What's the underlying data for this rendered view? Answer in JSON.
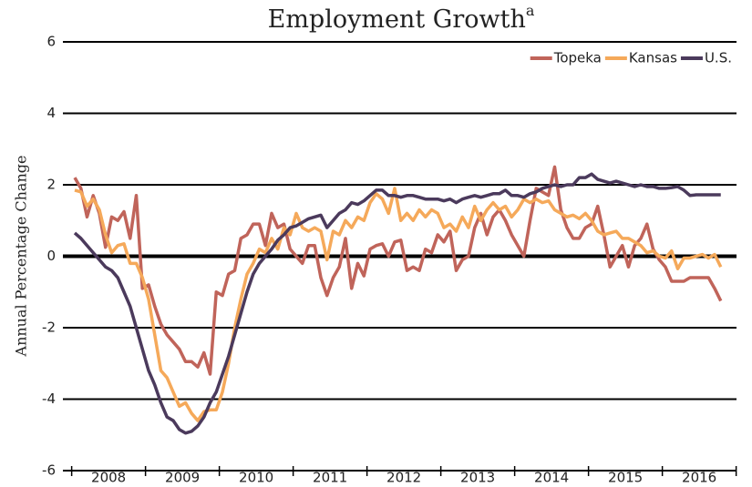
{
  "chart_data": {
    "type": "line",
    "title": "Employment Growth",
    "title_superscript": "a",
    "ylabel": "Annual Percentage Change",
    "categories": [
      null,
      null,
      null,
      null,
      null,
      null,
      "2008",
      null,
      null,
      null,
      null,
      null,
      null,
      null,
      null,
      null,
      null,
      null,
      "2009",
      null,
      null,
      null,
      null,
      null,
      null,
      null,
      null,
      null,
      null,
      null,
      "2010",
      null,
      null,
      null,
      null,
      null,
      null,
      null,
      null,
      null,
      null,
      null,
      "2011",
      null,
      null,
      null,
      null,
      null,
      null,
      null,
      null,
      null,
      null,
      null,
      "2012",
      null,
      null,
      null,
      null,
      null,
      null,
      null,
      null,
      null,
      null,
      null,
      "2013",
      null,
      null,
      null,
      null,
      null,
      null,
      null,
      null,
      null,
      null,
      null,
      "2014",
      null,
      null,
      null,
      null,
      null,
      null,
      null,
      null,
      null,
      null,
      null,
      "2015",
      null,
      null,
      null,
      null,
      null,
      null,
      null,
      null,
      null,
      null,
      null,
      "2016",
      null,
      null,
      null
    ],
    "series": [
      {
        "name": "Topeka",
        "color": "#c0645a",
        "values": [
          2.2,
          1.9,
          1.1,
          1.7,
          1.2,
          0.25,
          1.1,
          1.0,
          1.25,
          0.5,
          1.7,
          -0.9,
          -0.8,
          -1.4,
          -1.9,
          -2.2,
          -2.4,
          -2.6,
          -2.95,
          -2.95,
          -3.1,
          -2.7,
          -3.3,
          -1.0,
          -1.1,
          -0.5,
          -0.4,
          0.5,
          0.6,
          0.9,
          0.9,
          0.3,
          1.2,
          0.8,
          0.9,
          0.2,
          0.0,
          -0.2,
          0.3,
          0.3,
          -0.6,
          -1.1,
          -0.6,
          -0.3,
          0.5,
          -0.9,
          -0.2,
          -0.55,
          0.2,
          0.3,
          0.35,
          0.0,
          0.4,
          0.45,
          -0.4,
          -0.3,
          -0.4,
          0.2,
          0.1,
          0.6,
          0.4,
          0.7,
          -0.4,
          -0.1,
          0.0,
          0.8,
          1.2,
          0.6,
          1.1,
          1.3,
          1.0,
          0.6,
          0.3,
          0.0,
          1.0,
          1.9,
          1.8,
          1.7,
          2.5,
          1.3,
          0.8,
          0.5,
          0.5,
          0.8,
          0.9,
          1.4,
          0.6,
          -0.3,
          0.0,
          0.3,
          -0.3,
          0.3,
          0.5,
          0.9,
          0.2,
          -0.1,
          -0.3,
          -0.7,
          -0.7,
          -0.7,
          -0.6,
          -0.6,
          -0.6,
          -0.6,
          -0.9,
          -1.25
        ]
      },
      {
        "name": "Kansas",
        "color": "#f5a95a",
        "values": [
          1.85,
          1.8,
          1.4,
          1.6,
          1.3,
          0.6,
          0.1,
          0.3,
          0.35,
          -0.2,
          -0.2,
          -0.6,
          -1.2,
          -2.2,
          -3.2,
          -3.4,
          -3.8,
          -4.2,
          -4.1,
          -4.4,
          -4.6,
          -4.35,
          -4.3,
          -4.3,
          -3.8,
          -3.0,
          -2.0,
          -1.2,
          -0.5,
          -0.2,
          0.2,
          0.1,
          0.5,
          0.2,
          0.8,
          0.6,
          1.2,
          0.8,
          0.7,
          0.8,
          0.7,
          -0.1,
          0.7,
          0.6,
          1.0,
          0.8,
          1.1,
          1.0,
          1.5,
          1.75,
          1.6,
          1.2,
          1.9,
          1.0,
          1.2,
          1.0,
          1.3,
          1.1,
          1.3,
          1.2,
          0.8,
          0.9,
          0.7,
          1.1,
          0.8,
          1.4,
          1.0,
          1.3,
          1.5,
          1.3,
          1.4,
          1.1,
          1.3,
          1.6,
          1.5,
          1.6,
          1.5,
          1.55,
          1.3,
          1.2,
          1.1,
          1.15,
          1.05,
          1.2,
          1.0,
          0.7,
          0.6,
          0.65,
          0.7,
          0.5,
          0.5,
          0.4,
          0.3,
          0.1,
          0.15,
          0.0,
          -0.05,
          0.15,
          -0.35,
          -0.05,
          -0.05,
          0.0,
          0.05,
          -0.05,
          0.05,
          -0.3
        ]
      },
      {
        "name": "U.S.",
        "color": "#4b3a5c",
        "values": [
          0.65,
          0.5,
          0.3,
          0.1,
          -0.1,
          -0.3,
          -0.4,
          -0.6,
          -1.0,
          -1.4,
          -2.0,
          -2.6,
          -3.2,
          -3.6,
          -4.1,
          -4.5,
          -4.6,
          -4.85,
          -4.95,
          -4.9,
          -4.75,
          -4.5,
          -4.1,
          -3.8,
          -3.3,
          -2.8,
          -2.2,
          -1.6,
          -1.0,
          -0.5,
          -0.2,
          0.0,
          0.2,
          0.45,
          0.6,
          0.8,
          0.85,
          0.95,
          1.05,
          1.1,
          1.15,
          0.8,
          1.0,
          1.2,
          1.3,
          1.5,
          1.45,
          1.55,
          1.7,
          1.85,
          1.85,
          1.7,
          1.7,
          1.65,
          1.7,
          1.7,
          1.65,
          1.6,
          1.6,
          1.6,
          1.55,
          1.6,
          1.5,
          1.6,
          1.65,
          1.7,
          1.65,
          1.7,
          1.75,
          1.75,
          1.85,
          1.7,
          1.7,
          1.65,
          1.75,
          1.8,
          1.9,
          1.95,
          2.0,
          1.95,
          2.0,
          2.0,
          2.2,
          2.2,
          2.3,
          2.15,
          2.1,
          2.05,
          2.1,
          2.05,
          2.0,
          1.95,
          2.0,
          1.95,
          1.95,
          1.9,
          1.9,
          1.92,
          1.95,
          1.85,
          1.7,
          1.72,
          1.72,
          1.72,
          1.72,
          1.72
        ]
      }
    ],
    "ylim": [
      -6,
      6
    ],
    "yticks": [
      -6,
      -4,
      -2,
      0,
      2,
      4,
      6
    ],
    "grid": true,
    "legend": "top-right"
  }
}
